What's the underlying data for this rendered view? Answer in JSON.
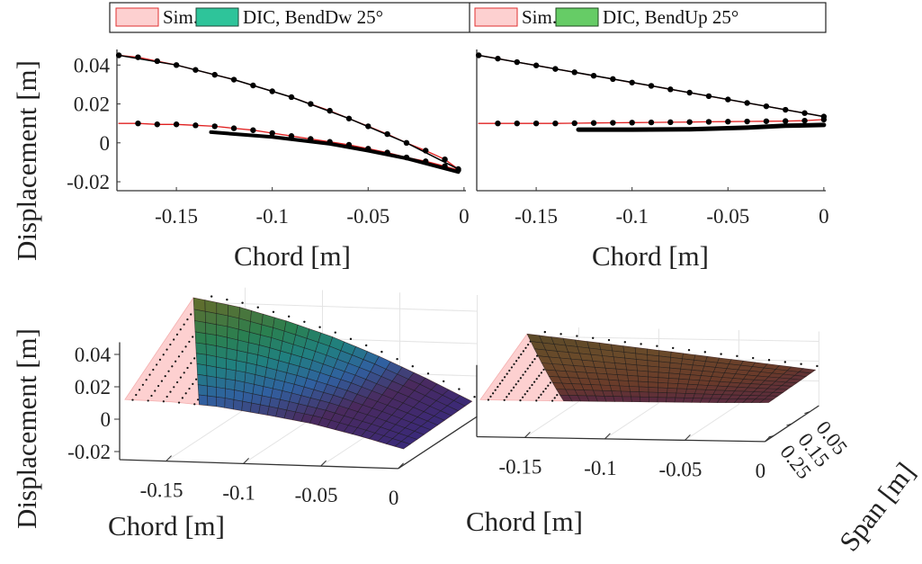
{
  "legend": {
    "left": [
      {
        "label": "Sim.",
        "fill": "#fdd0d0",
        "edge": "#e03030"
      },
      {
        "label": "DIC, BendDw 25°",
        "fill": "#2ec49a",
        "edge": "#1f4a3a"
      }
    ],
    "right": [
      {
        "label": "Sim.",
        "fill": "#fdd0d0",
        "edge": "#e03030"
      },
      {
        "label": "DIC, BendUp 25°",
        "fill": "#66cc66",
        "edge": "#1f4a1f"
      }
    ]
  },
  "chart_data": [
    {
      "type": "line",
      "panel": "top-left",
      "xlabel": "Chord [m]",
      "ylabel": "Displacement [m]",
      "xlim": [
        -0.181,
        0.001
      ],
      "ylim": [
        -0.0246,
        0.048
      ],
      "xticks": [
        -0.15,
        -0.1,
        -0.05,
        0
      ],
      "xtick_labels": [
        "-0.15",
        "-0.1",
        "-0.05",
        "0"
      ],
      "yticks": [
        0.04,
        0.02,
        0,
        -0.02
      ],
      "ytick_labels": [
        "0.04",
        "0.02",
        "0",
        "-0.02"
      ],
      "series": [
        {
          "role": "sim",
          "color": "#e02020",
          "markers": true,
          "x": [
            -0.18,
            -0.17,
            -0.16,
            -0.15,
            -0.14,
            -0.13,
            -0.12,
            -0.11,
            -0.1,
            -0.09,
            -0.08,
            -0.07,
            -0.06,
            -0.05,
            -0.04,
            -0.03,
            -0.02,
            -0.01,
            -0.003
          ],
          "y": [
            0.045,
            0.044,
            0.042,
            0.04,
            0.0375,
            0.035,
            0.0325,
            0.0295,
            0.0265,
            0.0235,
            0.02,
            0.0165,
            0.0125,
            0.0085,
            0.0045,
            0.0,
            -0.004,
            -0.0085,
            -0.0135
          ]
        },
        {
          "role": "sim",
          "color": "#e02020",
          "markers": true,
          "x": [
            -0.18,
            -0.17,
            -0.16,
            -0.15,
            -0.14,
            -0.13,
            -0.12,
            -0.11,
            -0.1,
            -0.09,
            -0.08,
            -0.07,
            -0.06,
            -0.05,
            -0.04,
            -0.03,
            -0.02,
            -0.01,
            -0.003
          ],
          "y": [
            0.01,
            0.01,
            0.0095,
            0.0095,
            0.009,
            0.0085,
            0.0075,
            0.0065,
            0.005,
            0.0035,
            0.002,
            0.0005,
            -0.001,
            -0.003,
            -0.005,
            -0.0075,
            -0.0095,
            -0.012,
            -0.014
          ]
        },
        {
          "role": "dic",
          "color": "#000000",
          "width": 1.5,
          "x": [
            -0.18,
            -0.15,
            -0.12,
            -0.09,
            -0.06,
            -0.03,
            -0.003
          ],
          "y": [
            0.045,
            0.04,
            0.0325,
            0.0235,
            0.0125,
            0.0,
            -0.0135
          ]
        },
        {
          "role": "dic",
          "color": "#000000",
          "width": 4,
          "x": [
            -0.132,
            -0.1,
            -0.07,
            -0.05,
            -0.03,
            -0.003
          ],
          "y": [
            0.0055,
            0.003,
            -0.0005,
            -0.004,
            -0.008,
            -0.015
          ]
        }
      ]
    },
    {
      "type": "line",
      "panel": "top-right",
      "xlabel": "Chord [m]",
      "xlim": [
        -0.181,
        0.001
      ],
      "ylim": [
        -0.0246,
        0.048
      ],
      "xticks": [
        -0.15,
        -0.1,
        -0.05,
        0
      ],
      "xtick_labels": [
        "-0.15",
        "-0.1",
        "-0.05",
        "0"
      ],
      "series": [
        {
          "role": "sim",
          "color": "#e02020",
          "markers": true,
          "x": [
            -0.18,
            -0.17,
            -0.16,
            -0.15,
            -0.14,
            -0.13,
            -0.12,
            -0.11,
            -0.1,
            -0.09,
            -0.08,
            -0.07,
            -0.06,
            -0.05,
            -0.04,
            -0.03,
            -0.02,
            -0.01,
            0
          ],
          "y": [
            0.045,
            0.0433,
            0.0415,
            0.0398,
            0.038,
            0.0363,
            0.0345,
            0.0328,
            0.031,
            0.0293,
            0.0275,
            0.0258,
            0.024,
            0.0223,
            0.0205,
            0.0188,
            0.017,
            0.0153,
            0.0135
          ]
        },
        {
          "role": "sim",
          "color": "#e02020",
          "markers": true,
          "x": [
            -0.18,
            -0.17,
            -0.16,
            -0.15,
            -0.14,
            -0.13,
            -0.12,
            -0.11,
            -0.1,
            -0.09,
            -0.08,
            -0.07,
            -0.06,
            -0.05,
            -0.04,
            -0.03,
            -0.02,
            -0.01,
            0
          ],
          "y": [
            0.01,
            0.01,
            0.01,
            0.01,
            0.01,
            0.0101,
            0.0102,
            0.0103,
            0.0104,
            0.0105,
            0.0106,
            0.0107,
            0.0108,
            0.0109,
            0.011,
            0.0111,
            0.0112,
            0.0114,
            0.012
          ]
        },
        {
          "role": "dic",
          "color": "#000000",
          "width": 1.5,
          "x": [
            -0.18,
            -0.09,
            0
          ],
          "y": [
            0.045,
            0.0293,
            0.0135
          ]
        },
        {
          "role": "dic",
          "color": "#000000",
          "width": 5,
          "x": [
            -0.128,
            -0.1,
            -0.07,
            -0.04,
            -0.02,
            0
          ],
          "y": [
            0.0068,
            0.0068,
            0.007,
            0.0078,
            0.0088,
            0.0092
          ]
        }
      ]
    },
    {
      "type": "surface",
      "panel": "bottom-left",
      "xlabel": "Chord [m]",
      "zlabel": "Displacement [m]",
      "xlim": [
        -0.18,
        0
      ],
      "ylim": [
        0,
        0.3
      ],
      "zlim": [
        -0.025,
        0.05
      ],
      "xticks": [
        -0.15,
        -0.1,
        -0.05,
        0
      ],
      "xtick_labels": [
        "-0.15",
        "-0.1",
        "-0.05",
        "0"
      ],
      "zticks": [
        0.04,
        0.02,
        0,
        -0.02
      ],
      "ztick_labels": [
        "0.04",
        "0.02",
        "0",
        "-0.02"
      ],
      "chord": [
        -0.18,
        -0.15,
        -0.12,
        -0.09,
        -0.06,
        -0.03,
        0
      ],
      "z_back": [
        0.045,
        0.04,
        0.0325,
        0.0235,
        0.0125,
        0.0,
        -0.0135
      ],
      "z_front": [
        0.01,
        0.0095,
        0.0075,
        0.0035,
        -0.001,
        -0.0075,
        -0.015
      ],
      "span_range": [
        0.02,
        0.28
      ],
      "dic_chord_start": [
        -0.18,
        -0.132
      ],
      "sim_color": "#fdd0d0",
      "colormap": [
        [
          -0.015,
          "#3a2a7a"
        ],
        [
          0.0,
          "#4a2a5e"
        ],
        [
          0.01,
          "#3060a0"
        ],
        [
          0.02,
          "#208080"
        ],
        [
          0.03,
          "#2a8050"
        ],
        [
          0.045,
          "#6a6a28"
        ]
      ]
    },
    {
      "type": "surface",
      "panel": "bottom-right",
      "xlabel": "Chord [m]",
      "ylabel": "Span [m]",
      "xlim": [
        -0.18,
        0
      ],
      "ylim": [
        0,
        0.3
      ],
      "zlim": [
        -0.025,
        0.05
      ],
      "xticks": [
        -0.15,
        -0.1,
        -0.05,
        0
      ],
      "xtick_labels": [
        "-0.15",
        "-0.1",
        "-0.05",
        "0"
      ],
      "yticks": [
        0.05,
        0.15,
        0.25
      ],
      "ytick_labels": [
        "0.05",
        "0.15",
        "0.25"
      ],
      "chord": [
        -0.18,
        -0.15,
        -0.12,
        -0.09,
        -0.06,
        -0.03,
        0
      ],
      "z_back": [
        0.045,
        0.0398,
        0.0345,
        0.0293,
        0.024,
        0.0188,
        0.0135
      ],
      "z_front": [
        0.01,
        0.01,
        0.0102,
        0.0105,
        0.0108,
        0.0111,
        0.012
      ],
      "span_range": [
        0.02,
        0.28
      ],
      "dic_chord_start": [
        -0.18,
        -0.128
      ],
      "sim_color": "#fdd0d0",
      "colormap": [
        [
          0.008,
          "#2a3060"
        ],
        [
          0.011,
          "#5a2a40"
        ],
        [
          0.016,
          "#6a3a2a"
        ],
        [
          0.03,
          "#6a4a2a"
        ],
        [
          0.045,
          "#5a4a28"
        ]
      ]
    }
  ]
}
